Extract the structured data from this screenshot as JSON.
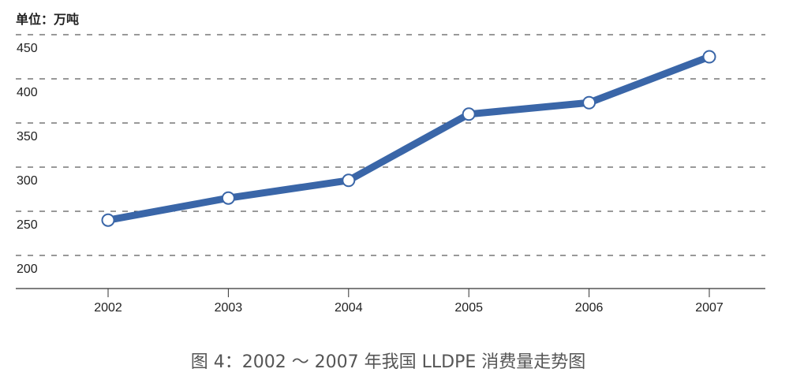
{
  "chart_data": {
    "type": "line",
    "title": "图 4：2002 ～ 2007 年我国 LLDPE 消费量走势图",
    "unit_label": "单位：万吨",
    "xlabel": "",
    "ylabel": "",
    "categories": [
      "2002",
      "2003",
      "2004",
      "2005",
      "2006",
      "2007"
    ],
    "series": [
      {
        "values": [
          240,
          265,
          285,
          360,
          373,
          425
        ]
      }
    ],
    "yticks": [
      200,
      250,
      300,
      350,
      400,
      450
    ],
    "ylim": [
      162,
      450
    ],
    "grid": true,
    "grid_style": "dashed",
    "legend": "none",
    "colors": {
      "line": "#3a66a8",
      "marker_fill": "#ffffff",
      "grid": "#333333"
    }
  }
}
